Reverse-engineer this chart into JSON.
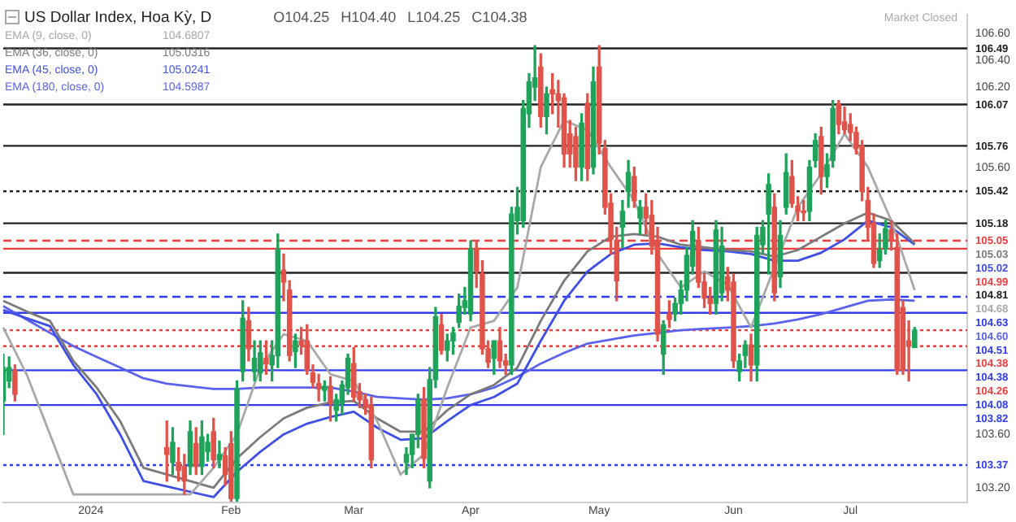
{
  "chart_data": {
    "type": "candlestick",
    "title": "US Dollar Index, Hoa Kỳ, D",
    "categories": [
      null,
      null,
      null,
      null,
      null,
      null,
      null,
      null,
      null,
      null,
      null,
      null,
      null,
      null,
      null,
      "2024",
      null,
      null,
      null,
      null,
      null,
      null,
      null,
      null,
      null,
      null,
      null,
      null,
      null,
      null,
      null,
      null,
      null,
      null,
      null,
      null,
      null,
      null,
      null,
      "Feb",
      null,
      null,
      null,
      null,
      null,
      null,
      null,
      null,
      null,
      null,
      null,
      null,
      null,
      null,
      null,
      null,
      null,
      null,
      null,
      null,
      "Mar",
      null,
      null,
      null,
      null,
      null,
      null,
      null,
      null,
      null,
      null,
      null,
      null,
      null,
      null,
      null,
      null,
      null,
      null,
      null,
      "Apr",
      null,
      null,
      null,
      null,
      null,
      null,
      null,
      null,
      null,
      null,
      null,
      null,
      null,
      null,
      null,
      null,
      null,
      null,
      null,
      null,
      null,
      "May",
      null,
      null,
      null,
      null,
      null,
      null,
      null,
      null,
      null,
      null,
      null,
      null,
      null,
      null,
      null,
      null,
      null,
      null,
      null,
      null,
      null,
      null,
      "Jun",
      null,
      null,
      null,
      null,
      null,
      null,
      null,
      null,
      null,
      null,
      null,
      null,
      null,
      null,
      null,
      null,
      null,
      null,
      null,
      "Jul",
      null,
      null,
      null,
      null,
      null,
      null,
      null,
      null,
      null,
      null,
      null,
      null,
      null,
      null,
      null,
      null,
      null,
      null,
      null,
      null
    ],
    "ohlc": [
      [
        103.85,
        104.2,
        103.6,
        104.1
      ],
      [
        104.0,
        104.18,
        103.95,
        104.1
      ],
      [
        104.08,
        104.12,
        103.85,
        103.9
      ],
      null,
      null,
      null,
      null,
      null,
      null,
      null,
      null,
      null,
      null,
      null,
      null,
      null,
      null,
      null,
      null,
      null,
      null,
      null,
      null,
      null,
      null,
      null,
      null,
      null,
      [
        103.5,
        103.7,
        103.25,
        103.45
      ],
      [
        103.39,
        103.65,
        103.3,
        103.54
      ],
      [
        103.39,
        103.5,
        103.25,
        103.33
      ],
      [
        103.36,
        103.45,
        103.15,
        103.25
      ],
      [
        103.36,
        103.7,
        103.3,
        103.62
      ],
      [
        103.53,
        103.65,
        103.3,
        103.36
      ],
      [
        103.36,
        103.7,
        103.3,
        103.58
      ],
      [
        103.47,
        103.6,
        103.4,
        103.54
      ],
      [
        103.62,
        103.72,
        103.35,
        103.41
      ],
      [
        103.41,
        103.55,
        103.35,
        103.45
      ],
      [
        103.44,
        103.5,
        103.22,
        103.3
      ],
      [
        103.53,
        103.62,
        103.1,
        103.12
      ],
      [
        103.12,
        104.0,
        103.1,
        103.94
      ],
      [
        104.07,
        104.6,
        104.0,
        104.47
      ],
      [
        104.45,
        104.55,
        104.15,
        104.24
      ],
      [
        104.07,
        104.3,
        104.0,
        104.17
      ],
      [
        104.06,
        104.3,
        104.0,
        104.21
      ],
      [
        104.17,
        104.3,
        104.05,
        104.13
      ],
      [
        104.12,
        104.3,
        104.0,
        104.19
      ],
      [
        104.19,
        105.1,
        104.1,
        104.98
      ],
      [
        104.83,
        104.95,
        104.6,
        104.74
      ],
      [
        104.68,
        104.75,
        104.15,
        104.19
      ],
      [
        104.22,
        104.35,
        104.1,
        104.3
      ],
      [
        104.3,
        104.4,
        104.2,
        104.27
      ],
      [
        104.3,
        104.42,
        104.05,
        104.08
      ],
      [
        104.06,
        104.12,
        103.95,
        103.99
      ],
      [
        103.98,
        104.05,
        103.85,
        103.94
      ],
      [
        103.93,
        104.0,
        103.85,
        103.96
      ],
      [
        103.96,
        104.03,
        103.7,
        103.83
      ],
      [
        103.78,
        103.9,
        103.7,
        103.86
      ],
      [
        103.83,
        104.0,
        103.75,
        103.97
      ],
      [
        103.95,
        104.2,
        103.9,
        104.17
      ],
      [
        104.13,
        104.25,
        103.85,
        103.88
      ],
      [
        103.92,
        103.98,
        103.8,
        103.86
      ],
      [
        103.86,
        103.9,
        103.75,
        103.8
      ],
      [
        103.82,
        103.88,
        103.35,
        103.41
      ],
      null,
      null,
      null,
      null,
      null,
      [
        103.39,
        103.5,
        103.3,
        103.45
      ],
      [
        103.45,
        103.6,
        103.35,
        103.6
      ],
      [
        103.6,
        103.9,
        103.5,
        103.86
      ],
      [
        103.86,
        103.95,
        103.35,
        103.42
      ],
      [
        103.25,
        104.1,
        103.2,
        104.01
      ],
      [
        104.01,
        104.55,
        103.95,
        104.48
      ],
      [
        104.42,
        104.5,
        104.2,
        104.23
      ],
      [
        104.23,
        104.35,
        104.15,
        104.3
      ],
      [
        104.3,
        104.4,
        104.2,
        104.36
      ],
      [
        104.44,
        104.65,
        104.4,
        104.56
      ],
      [
        104.55,
        104.7,
        104.5,
        104.6
      ],
      [
        104.5,
        105.05,
        104.45,
        104.99
      ],
      [
        104.98,
        105.05,
        104.7,
        104.82
      ],
      [
        104.8,
        104.9,
        104.2,
        104.24
      ],
      [
        104.24,
        104.3,
        104.1,
        104.14
      ],
      [
        104.17,
        104.3,
        104.05,
        104.3
      ],
      [
        104.3,
        104.4,
        104.1,
        104.15
      ],
      [
        104.15,
        104.2,
        104.05,
        104.12
      ],
      [
        104.12,
        105.3,
        104.05,
        105.25
      ],
      [
        105.2,
        105.45,
        105.1,
        105.3
      ],
      [
        105.2,
        106.1,
        105.15,
        106.04
      ],
      [
        106.0,
        106.3,
        105.9,
        106.24
      ],
      [
        106.2,
        106.51,
        106.1,
        106.27
      ],
      [
        106.35,
        106.45,
        105.9,
        105.98
      ],
      [
        105.98,
        106.2,
        105.85,
        106.15
      ],
      [
        106.18,
        106.3,
        106.0,
        106.15
      ],
      [
        106.15,
        106.25,
        105.9,
        106.1
      ],
      [
        106.12,
        106.15,
        105.6,
        105.7
      ],
      [
        105.85,
        105.95,
        105.6,
        105.7
      ],
      [
        105.83,
        105.9,
        105.5,
        105.6
      ],
      [
        105.6,
        106.0,
        105.5,
        105.93
      ],
      [
        106.08,
        106.15,
        105.5,
        105.59
      ],
      [
        105.6,
        106.35,
        105.55,
        106.24
      ],
      [
        106.35,
        106.51,
        105.7,
        105.78
      ],
      [
        105.74,
        105.8,
        105.25,
        105.3
      ],
      [
        105.33,
        105.4,
        104.95,
        105.06
      ],
      [
        105.05,
        105.15,
        104.6,
        104.75
      ],
      [
        105.15,
        105.35,
        105.0,
        105.27
      ],
      [
        105.42,
        105.65,
        105.3,
        105.56
      ],
      [
        105.53,
        105.6,
        105.3,
        105.35
      ],
      [
        105.22,
        105.35,
        105.1,
        105.3
      ],
      [
        105.3,
        105.4,
        105.1,
        105.22
      ],
      [
        105.24,
        105.35,
        104.95,
        105.01
      ],
      [
        105.05,
        105.15,
        104.3,
        104.35
      ],
      [
        104.2,
        104.45,
        104.05,
        104.42
      ],
      [
        104.5,
        104.6,
        104.4,
        104.46
      ],
      [
        104.5,
        104.62,
        104.45,
        104.58
      ],
      [
        104.58,
        104.75,
        104.5,
        104.68
      ],
      [
        104.68,
        105.0,
        104.6,
        104.94
      ],
      [
        104.86,
        105.2,
        104.8,
        105.12
      ],
      [
        105.05,
        105.15,
        104.7,
        104.74
      ],
      [
        104.74,
        104.8,
        104.55,
        104.62
      ],
      [
        104.62,
        104.7,
        104.5,
        104.58
      ],
      [
        104.58,
        105.2,
        104.5,
        105.13
      ],
      [
        104.66,
        105.15,
        104.6,
        105.01
      ],
      [
        104.78,
        104.85,
        104.6,
        104.68
      ],
      [
        104.74,
        104.8,
        104.1,
        104.15
      ],
      [
        104.07,
        104.2,
        104.0,
        104.15
      ],
      [
        104.19,
        104.3,
        104.1,
        104.27
      ],
      [
        104.27,
        104.35,
        104.0,
        104.12
      ],
      [
        104.12,
        105.15,
        104.0,
        105.09
      ],
      [
        105.02,
        105.2,
        104.95,
        105.15
      ],
      [
        105.25,
        105.55,
        104.8,
        105.47
      ],
      [
        105.3,
        105.4,
        104.6,
        104.66
      ],
      [
        104.78,
        105.2,
        104.7,
        105.09
      ],
      [
        105.3,
        105.7,
        105.25,
        105.56
      ],
      [
        105.53,
        105.65,
        105.3,
        105.33
      ],
      [
        105.31,
        105.38,
        105.2,
        105.27
      ],
      [
        105.27,
        105.35,
        105.2,
        105.26
      ],
      [
        105.27,
        105.65,
        105.2,
        105.6
      ],
      [
        105.65,
        105.85,
        105.6,
        105.8
      ],
      [
        105.83,
        105.9,
        105.4,
        105.53
      ],
      [
        105.53,
        105.7,
        105.45,
        105.62
      ],
      [
        105.65,
        106.1,
        105.6,
        106.04
      ],
      [
        106.07,
        106.1,
        105.85,
        105.92
      ],
      [
        105.94,
        106.05,
        105.85,
        105.88
      ],
      [
        105.92,
        106.0,
        105.8,
        105.86
      ],
      [
        105.86,
        105.9,
        105.7,
        105.74
      ],
      [
        105.76,
        105.8,
        105.35,
        105.42
      ],
      [
        105.35,
        105.45,
        105.05,
        105.15
      ],
      [
        105.18,
        105.25,
        104.85,
        104.88
      ],
      [
        104.9,
        105.1,
        104.85,
        104.98
      ],
      [
        104.99,
        105.2,
        104.95,
        105.14
      ],
      [
        105.13,
        105.2,
        104.98,
        105.06
      ],
      [
        105.0,
        105.1,
        104.05,
        104.08
      ],
      [
        104.55,
        104.6,
        104.05,
        104.08
      ],
      [
        104.3,
        104.45,
        104.0,
        104.26
      ],
      [
        104.25,
        104.4,
        104.25,
        104.38
      ],
      null,
      null,
      null,
      null,
      null,
      null,
      null,
      null,
      null
    ],
    "colors": [
      "#1fa35a",
      "#1fa35a",
      "#e0534a",
      null,
      null,
      null,
      null,
      null,
      null,
      null,
      null,
      null,
      null,
      null,
      null,
      null,
      null,
      null,
      null,
      null,
      null,
      null,
      null,
      null,
      null,
      null,
      null,
      null,
      "#e0534a",
      "#1fa35a",
      "#e0534a",
      "#e0534a",
      "#1fa35a",
      "#e0534a",
      "#1fa35a",
      "#1fa35a",
      "#e0534a",
      "#1fa35a",
      "#e0534a",
      "#e0534a",
      "#1fa35a",
      "#1fa35a",
      "#e0534a",
      "#1fa35a",
      "#1fa35a",
      "#e0534a",
      "#1fa35a",
      "#1fa35a",
      "#e0534a",
      "#e0534a",
      "#1fa35a",
      "#e0534a",
      "#e0534a",
      "#e0534a",
      "#e0534a",
      "#1fa35a",
      "#e0534a",
      "#1fa35a",
      "#1fa35a",
      "#1fa35a",
      "#e0534a",
      "#e0534a",
      "#e0534a",
      "#e0534a",
      null,
      null,
      null,
      null,
      null,
      "#1fa35a",
      "#1fa35a",
      "#1fa35a",
      "#e0534a",
      "#1fa35a",
      "#1fa35a",
      "#e0534a",
      "#1fa35a",
      "#1fa35a",
      "#1fa35a",
      "#1fa35a",
      "#1fa35a",
      "#e0534a",
      "#e0534a",
      "#e0534a",
      "#1fa35a",
      "#e0534a",
      "#e0534a",
      "#1fa35a",
      "#1fa35a",
      "#1fa35a",
      "#1fa35a",
      "#1fa35a",
      "#e0534a",
      "#1fa35a",
      "#e0534a",
      "#e0534a",
      "#e0534a",
      "#e0534a",
      "#e0534a",
      "#1fa35a",
      "#e0534a",
      "#1fa35a",
      "#e0534a",
      "#e0534a",
      "#e0534a",
      "#e0534a",
      "#1fa35a",
      "#1fa35a",
      "#e0534a",
      "#1fa35a",
      "#e0534a",
      "#e0534a",
      "#e0534a",
      "#1fa35a",
      "#e0534a",
      "#1fa35a",
      "#1fa35a",
      "#1fa35a",
      "#1fa35a",
      "#e0534a",
      "#e0534a",
      "#e0534a",
      "#1fa35a",
      "#1fa35a",
      "#e0534a",
      "#e0534a",
      "#1fa35a",
      "#1fa35a",
      "#e0534a",
      "#1fa35a",
      "#1fa35a",
      "#1fa35a",
      "#e0534a",
      "#1fa35a",
      "#1fa35a",
      "#e0534a",
      "#e0534a",
      "#e0534a",
      "#1fa35a",
      "#1fa35a",
      "#e0534a",
      "#1fa35a",
      "#1fa35a",
      "#e0534a",
      "#e0534a",
      "#e0534a",
      "#e0534a",
      "#e0534a",
      "#e0534a",
      "#e0534a",
      "#1fa35a",
      "#1fa35a",
      "#e0534a",
      "#e0534a",
      "#e0534a",
      "#e0534a",
      "#1fa35a",
      null,
      null,
      null,
      null,
      null,
      null,
      null,
      null,
      null
    ],
    "series": [
      {
        "type": "line",
        "name": "EMA (9, close, 0)",
        "color": "#a8a8a8",
        "values": [
          104.4,
          null,
          null,
          null,
          104.05,
          null,
          null,
          null,
          103.6,
          null,
          null,
          null,
          103.15,
          null,
          null,
          null,
          null,
          null,
          null,
          null,
          null,
          null,
          null,
          null,
          null,
          null,
          null,
          null,
          null,
          null,
          null,
          null,
          103.15,
          null,
          null,
          null,
          103.35,
          null,
          null,
          null,
          103.6,
          null,
          null,
          null,
          104.1,
          null,
          null,
          null,
          104.35,
          null,
          null,
          null,
          104.3,
          null,
          null,
          null,
          104.05,
          null,
          null,
          null,
          104.0,
          null,
          null,
          null,
          103.7,
          null,
          null,
          null,
          103.3,
          null,
          null,
          null,
          103.45,
          null,
          null,
          null,
          103.95,
          null,
          null,
          null,
          104.4,
          null,
          null,
          null,
          104.45,
          null,
          null,
          null,
          104.7,
          null,
          null,
          null,
          105.6,
          null,
          null,
          null,
          105.95,
          null,
          null,
          null,
          105.88,
          null,
          null,
          null,
          105.6,
          null,
          null,
          null,
          105.35,
          null,
          null,
          null,
          104.95,
          null,
          null,
          null,
          104.7,
          null,
          null,
          null,
          104.82,
          null,
          null,
          null,
          104.72,
          null,
          null,
          null,
          104.4,
          null,
          null,
          null,
          104.85,
          null,
          null,
          null,
          105.3,
          null,
          null,
          null,
          105.55,
          null,
          null,
          null,
          105.85,
          null,
          null,
          null,
          105.6,
          null,
          null,
          null,
          105.2,
          null,
          null,
          null,
          104.68,
          null,
          null,
          null,
          null,
          null,
          null,
          null,
          null,
          null
        ]
      },
      {
        "type": "line",
        "name": "EMA (36, close, 0)",
        "color": "#7a7a7a",
        "values": [
          104.6,
          null,
          null,
          null,
          104.52,
          null,
          null,
          null,
          104.45,
          null,
          null,
          null,
          104.15,
          null,
          null,
          null,
          103.95,
          null,
          null,
          null,
          103.7,
          null,
          null,
          null,
          103.35,
          null,
          null,
          null,
          null,
          null,
          null,
          null,
          null,
          null,
          null,
          null,
          103.2,
          null,
          null,
          null,
          103.42,
          null,
          null,
          null,
          103.58,
          null,
          null,
          null,
          103.72,
          null,
          null,
          null,
          103.8,
          null,
          null,
          null,
          103.84,
          null,
          null,
          null,
          103.85,
          null,
          null,
          null,
          103.72,
          null,
          null,
          null,
          103.62,
          null,
          null,
          null,
          103.62,
          null,
          null,
          null,
          103.78,
          null,
          null,
          null,
          103.9,
          null,
          null,
          null,
          103.97,
          null,
          null,
          null,
          104.1,
          null,
          null,
          null,
          104.45,
          null,
          null,
          null,
          104.75,
          null,
          null,
          null,
          104.97,
          null,
          null,
          null,
          105.08,
          null,
          null,
          null,
          105.1,
          null,
          null,
          null,
          105.08,
          null,
          null,
          null,
          105.02,
          null,
          null,
          null,
          105.0,
          null,
          null,
          null,
          104.98,
          null,
          null,
          null,
          104.97,
          null,
          null,
          null,
          104.93,
          null,
          null,
          null,
          104.98,
          null,
          null,
          null,
          105.08,
          null,
          null,
          null,
          105.18,
          null,
          null,
          null,
          105.26,
          null,
          null,
          null,
          105.2,
          null,
          null,
          null,
          105.03,
          null,
          null,
          null,
          null,
          null,
          null,
          null,
          null,
          null
        ]
      },
      {
        "type": "line",
        "name": "EMA (45, close, 0)",
        "color": "#3f4fe6",
        "values": [
          104.53,
          null,
          null,
          null,
          104.47,
          null,
          null,
          null,
          104.41,
          null,
          null,
          null,
          104.12,
          null,
          null,
          null,
          103.9,
          null,
          null,
          null,
          103.6,
          null,
          null,
          null,
          103.25,
          null,
          null,
          null,
          null,
          null,
          null,
          null,
          null,
          null,
          null,
          null,
          103.13,
          null,
          null,
          null,
          103.32,
          null,
          null,
          null,
          103.47,
          null,
          null,
          null,
          103.6,
          null,
          null,
          null,
          103.68,
          null,
          null,
          null,
          103.73,
          null,
          null,
          null,
          103.77,
          null,
          null,
          null,
          103.65,
          null,
          null,
          null,
          103.56,
          null,
          null,
          null,
          103.57,
          null,
          null,
          null,
          103.7,
          null,
          null,
          null,
          103.82,
          null,
          null,
          null,
          103.88,
          null,
          null,
          null,
          103.98,
          null,
          null,
          null,
          104.3,
          null,
          null,
          null,
          104.6,
          null,
          null,
          null,
          104.82,
          null,
          null,
          null,
          104.95,
          null,
          null,
          null,
          105.02,
          null,
          null,
          null,
          105.03,
          null,
          null,
          null,
          105.0,
          null,
          null,
          null,
          104.98,
          null,
          null,
          null,
          104.97,
          null,
          null,
          null,
          104.95,
          null,
          null,
          null,
          104.9,
          null,
          null,
          null,
          104.9,
          null,
          null,
          null,
          104.96,
          null,
          null,
          null,
          105.06,
          null,
          null,
          null,
          105.2,
          null,
          null,
          null,
          105.15,
          null,
          null,
          null,
          105.02,
          null,
          null,
          null,
          null,
          null,
          null,
          null,
          null,
          null
        ]
      },
      {
        "type": "line",
        "name": "EMA (180, close, 0)",
        "color": "#5a62ee",
        "values": [
          104.56,
          null,
          null,
          null,
          104.46,
          null,
          null,
          null,
          104.36,
          null,
          null,
          null,
          104.26,
          null,
          null,
          null,
          104.18,
          null,
          null,
          null,
          104.1,
          null,
          null,
          null,
          104.02,
          null,
          null,
          null,
          103.98,
          null,
          null,
          null,
          103.96,
          null,
          null,
          null,
          103.94,
          null,
          null,
          null,
          103.94,
          null,
          null,
          null,
          103.95,
          null,
          null,
          null,
          103.95,
          null,
          null,
          null,
          103.95,
          null,
          null,
          null,
          103.95,
          null,
          null,
          null,
          103.92,
          null,
          null,
          null,
          103.88,
          null,
          null,
          null,
          103.87,
          null,
          null,
          null,
          103.86,
          null,
          null,
          null,
          103.87,
          null,
          null,
          null,
          103.9,
          null,
          null,
          null,
          103.95,
          null,
          null,
          null,
          104.03,
          null,
          null,
          null,
          104.13,
          null,
          null,
          null,
          104.21,
          null,
          null,
          null,
          104.28,
          null,
          null,
          null,
          104.31,
          null,
          null,
          null,
          104.34,
          null,
          null,
          null,
          104.36,
          null,
          null,
          null,
          104.38,
          null,
          null,
          null,
          104.39,
          null,
          null,
          null,
          104.4,
          null,
          null,
          null,
          104.41,
          null,
          null,
          null,
          104.43,
          null,
          null,
          null,
          104.46,
          null,
          null,
          null,
          104.5,
          null,
          null,
          null,
          104.55,
          null,
          null,
          null,
          104.6,
          null,
          null,
          null,
          104.61,
          null,
          null,
          null,
          104.6,
          null,
          null,
          null,
          null,
          null,
          null,
          null,
          null,
          null
        ]
      }
    ],
    "ylim": [
      103.09,
      106.74
    ],
    "yticks": [
      {
        "value": 103.2,
        "label": "103.20"
      },
      {
        "value": 103.6,
        "label": "103.60"
      },
      {
        "value": 105.6,
        "label": "105.60"
      },
      {
        "value": 106.2,
        "label": "106.20"
      },
      {
        "value": 106.4,
        "label": "106.40"
      },
      {
        "value": 106.6,
        "label": "106.60"
      }
    ],
    "ref_lines": [
      {
        "axis": "y",
        "value": 106.49,
        "label": "106.49",
        "color": "#222222",
        "line_style": "solid"
      },
      {
        "axis": "y",
        "value": 106.07,
        "label": "106.07",
        "color": "#222222",
        "line_style": "solid"
      },
      {
        "axis": "y",
        "value": 105.76,
        "label": "105.76",
        "color": "#222222",
        "line_style": "solid"
      },
      {
        "axis": "y",
        "value": 105.42,
        "label": "105.42",
        "color": "#222222",
        "line_style": "dotted"
      },
      {
        "axis": "y",
        "value": 105.18,
        "label": "105.18",
        "color": "#222222",
        "line_style": "solid"
      },
      {
        "axis": "y",
        "value": 105.05,
        "label": "105.05",
        "color": "#ef3d3d",
        "line_style": "dashed"
      },
      {
        "axis": "y",
        "value": 104.99,
        "label": "104.99",
        "color": "#ef3d3d",
        "line_style": "solid"
      },
      {
        "axis": "y",
        "value": 104.81,
        "label": "104.81",
        "color": "#222222",
        "line_style": "solid"
      },
      {
        "axis": "y",
        "value": 104.63,
        "label": "104.63",
        "color": "#2f3cf0",
        "line_style": "dashed"
      },
      {
        "axis": "y",
        "value": 104.51,
        "label": "104.51",
        "color": "#2f3cf0",
        "line_style": "solid"
      },
      {
        "axis": "y",
        "value": 104.38,
        "label": "104.38",
        "color": "#ef3d3d",
        "line_style": "dotted"
      },
      {
        "axis": "y",
        "value": 104.26,
        "label": "104.26",
        "color": "#ef3d3d",
        "line_style": "dotted"
      },
      {
        "axis": "y",
        "value": 104.08,
        "label": "104.08",
        "color": "#2f3cf0",
        "line_style": "solid"
      },
      {
        "axis": "y",
        "value": 103.82,
        "label": "103.82",
        "color": "#2f3cf0",
        "line_style": "solid"
      },
      {
        "axis": "y",
        "value": 103.37,
        "label": "103.37",
        "color": "#2f3cf0",
        "line_style": "dotted"
      }
    ],
    "annotations": [
      "O104.25",
      "H104.40",
      "L104.25",
      "C104.38",
      "Market Closed",
      "104.6807",
      "105.0316",
      "105.0241",
      "104.5987",
      "104.68",
      "105.03",
      "105.02",
      "104.60",
      "104.38"
    ],
    "legend": "top left",
    "marker": "none"
  }
}
